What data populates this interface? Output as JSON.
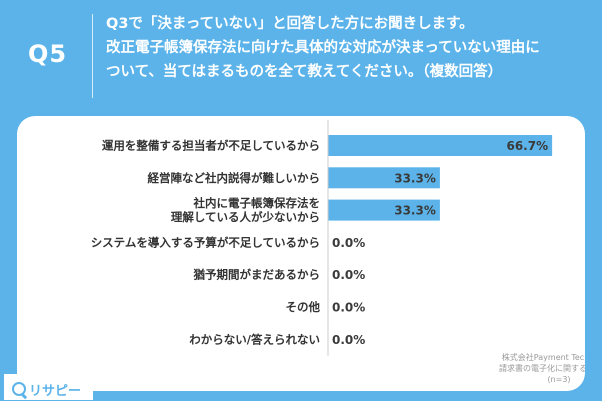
{
  "header": {
    "question_id": "Q5",
    "question_lines": [
      "Q3で「決まっていない」と回答した方にお聞きします。",
      "改正電子帳簿保存法に向けた具体的な対応が決まっていない理由に",
      "ついて、当てはまるものを全て教えてください。（複数回答）"
    ]
  },
  "chart_data": {
    "type": "bar",
    "orientation": "horizontal",
    "categories": [
      [
        "運用を整備する担当者が不足しているから"
      ],
      [
        "経営陣など社内説得が難しいから"
      ],
      [
        "社内に電子帳簿保存法を",
        "理解している人が少ないから"
      ],
      [
        "システムを導入する予算が不足しているから"
      ],
      [
        "猶予期間がまだあるから"
      ],
      [
        "その他"
      ],
      [
        "わからない/答えられない"
      ]
    ],
    "values": [
      66.7,
      33.3,
      33.3,
      0.0,
      0.0,
      0.0,
      0.0
    ],
    "value_labels": [
      "66.7%",
      "33.3%",
      "33.3%",
      "0.0%",
      "0.0%",
      "0.0%",
      "0.0%"
    ],
    "xlim": [
      0,
      100
    ],
    "bar_color": "#5bb3ea",
    "grid": false
  },
  "source": {
    "lines": [
      "株式会社Payment Technology",
      "請求書の電子化に関する実態調査",
      "(n=3)"
    ]
  },
  "brand": {
    "name": "リサピー",
    "icon": "search-q-icon"
  }
}
